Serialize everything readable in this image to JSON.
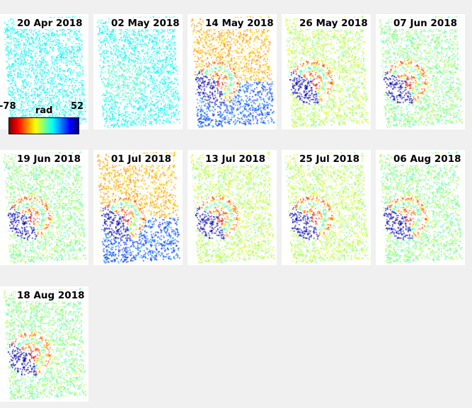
{
  "panels": [
    {
      "date": "20 Apr 2018",
      "style": "uniform"
    },
    {
      "date": "02 May 2018",
      "style": "uniform2"
    },
    {
      "date": "14 May 2018",
      "style": "full"
    },
    {
      "date": "26 May 2018",
      "style": "mid"
    },
    {
      "date": "07 Jun 2018",
      "style": "light"
    },
    {
      "date": "19 Jun 2018",
      "style": "light"
    },
    {
      "date": "01 Jul 2018",
      "style": "full"
    },
    {
      "date": "13 Jul 2018",
      "style": "mid"
    },
    {
      "date": "25 Jul 2018",
      "style": "mid"
    },
    {
      "date": "06 Aug 2018",
      "style": "light"
    },
    {
      "date": "18 Aug 2018",
      "style": "light"
    }
  ],
  "colorbar": {
    "min_label": "-78",
    "max_label": "52",
    "unit": "rad",
    "colormap": "jet reversed"
  }
}
